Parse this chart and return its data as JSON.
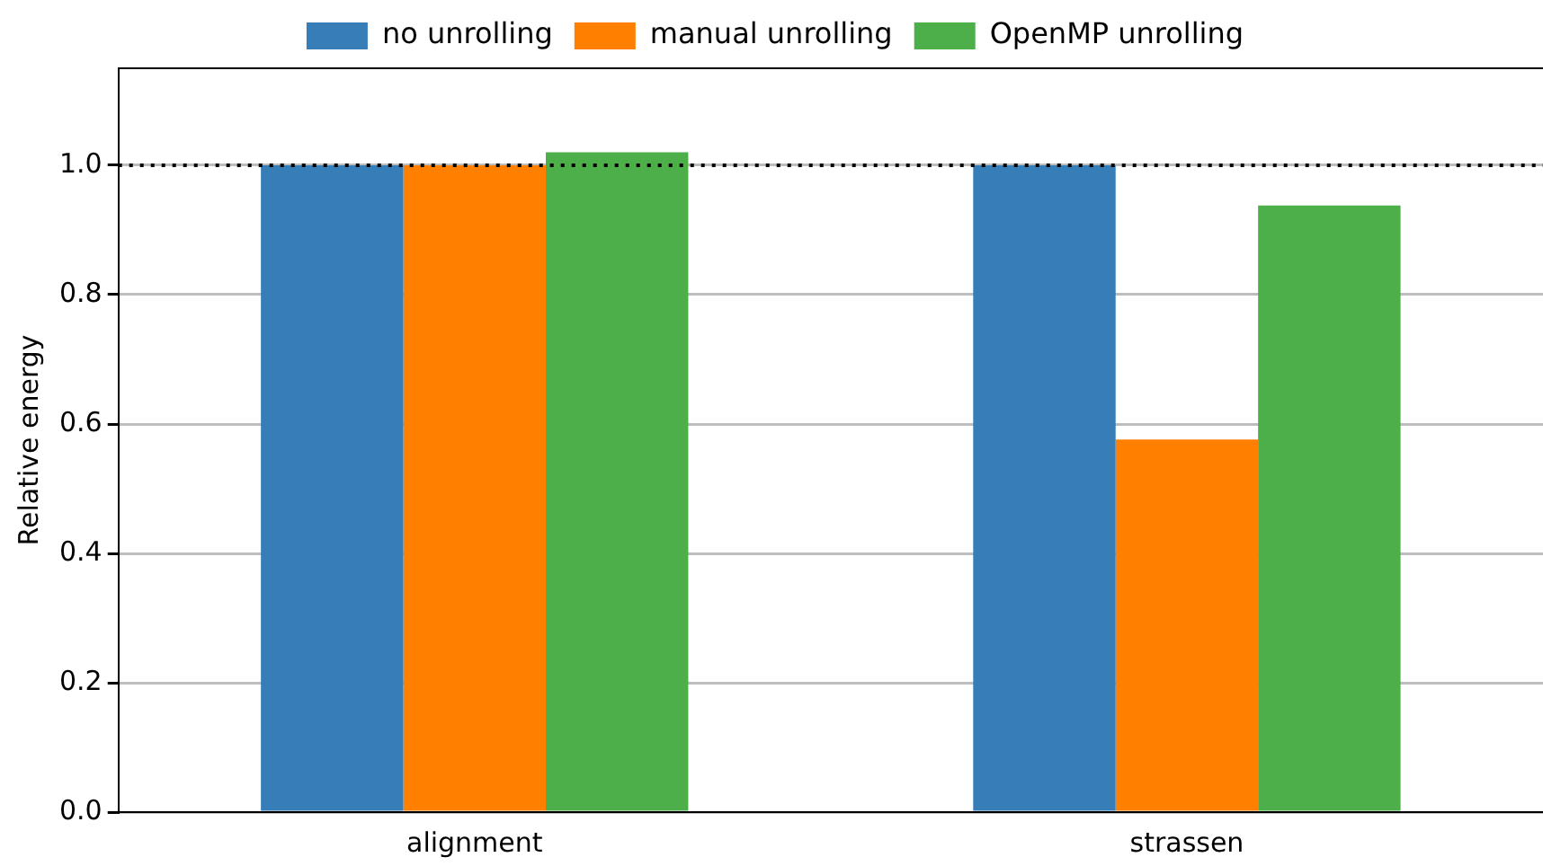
{
  "chart_data": {
    "type": "bar",
    "ylabel": "Relative energy",
    "categories": [
      "alignment",
      "strassen"
    ],
    "series": [
      {
        "name": "no unrolling",
        "color": "#377eb8",
        "values": [
          1.0,
          1.0
        ]
      },
      {
        "name": "manual unrolling",
        "color": "#ff7f00",
        "values": [
          1.0,
          0.576
        ]
      },
      {
        "name": "OpenMP unrolling",
        "color": "#4daf4a",
        "values": [
          1.02,
          0.938
        ]
      }
    ],
    "ylim": [
      0,
      1.15
    ],
    "yticks": [
      {
        "value": 0,
        "label": "0.0"
      },
      {
        "value": 0.2,
        "label": "0.2"
      },
      {
        "value": 0.4,
        "label": "0.4"
      },
      {
        "value": 0.6,
        "label": "0.6"
      },
      {
        "value": 0.8,
        "label": "0.8"
      },
      {
        "value": 1,
        "label": "1.0"
      }
    ],
    "grid": "y",
    "legend": "top",
    "ref_lines": [
      {
        "axis": "y",
        "value": 1,
        "color": "#000000",
        "line_style": "dotted"
      }
    ]
  }
}
